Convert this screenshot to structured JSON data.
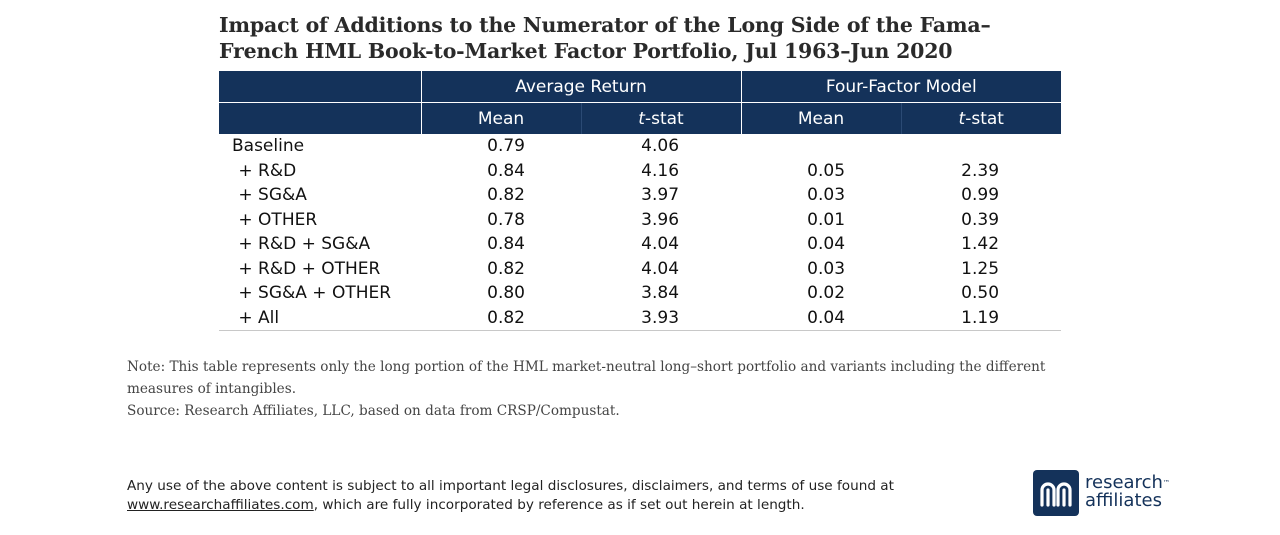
{
  "title": {
    "line1": "Impact of Additions to the Numerator of the Long Side of the Fama–",
    "line2": "French HML Book-to-Market Factor Portfolio, Jul 1963–Jun 2020"
  },
  "table": {
    "group_headers": [
      "Average Return",
      "Four-Factor Model"
    ],
    "sub_headers": {
      "mean": "Mean",
      "t_italic": "t",
      "t_rest": "-stat"
    },
    "rows": [
      {
        "label": "Baseline",
        "avg_mean": "0.79",
        "avg_t": "4.06",
        "ff_mean": "",
        "ff_t": ""
      },
      {
        "label": " + R&D",
        "avg_mean": "0.84",
        "avg_t": "4.16",
        "ff_mean": "0.05",
        "ff_t": "2.39"
      },
      {
        "label": " + SG&A",
        "avg_mean": "0.82",
        "avg_t": "3.97",
        "ff_mean": "0.03",
        "ff_t": "0.99"
      },
      {
        "label": " + OTHER",
        "avg_mean": "0.78",
        "avg_t": "3.96",
        "ff_mean": "0.01",
        "ff_t": "0.39"
      },
      {
        "label": " + R&D + SG&A",
        "avg_mean": "0.84",
        "avg_t": "4.04",
        "ff_mean": "0.04",
        "ff_t": "1.42"
      },
      {
        "label": " + R&D + OTHER",
        "avg_mean": "0.82",
        "avg_t": "4.04",
        "ff_mean": "0.03",
        "ff_t": "1.25"
      },
      {
        "label": " + SG&A + OTHER",
        "avg_mean": "0.80",
        "avg_t": "3.84",
        "ff_mean": "0.02",
        "ff_t": "0.50"
      },
      {
        "label": " + All",
        "avg_mean": "0.82",
        "avg_t": "3.93",
        "ff_mean": "0.04",
        "ff_t": "1.19"
      }
    ]
  },
  "note": {
    "text": "Note: This table represents only the long portion of the HML market-neutral long–short portfolio and variants including the different measures of intangibles.",
    "source": "Source: Research Affiliates, LLC, based on data from CRSP/Compustat."
  },
  "disclaimer": {
    "line1": "Any use of the above content is subject to all important legal disclosures, disclaimers, and terms of use found at",
    "link": "www.researchaffiliates.com",
    "line2_rest": ", which are fully incorporated by reference as if set out herein at length."
  },
  "logo": {
    "word1": "research",
    "tm": "™",
    "word2": "affiliates"
  },
  "colors": {
    "header_bg": "#14325a",
    "brand": "#14325a"
  }
}
